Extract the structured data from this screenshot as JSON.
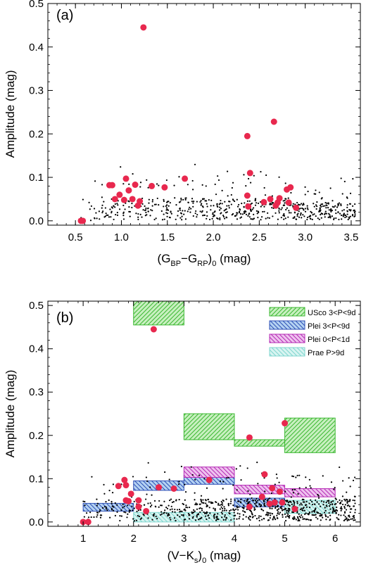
{
  "chart_data": [
    {
      "id": "a",
      "type": "scatter",
      "panel_label": "(a)",
      "xlabel": {
        "pre": "(G",
        "sub1": "BP",
        "mid": "−G",
        "sub2": "RP",
        "post": ")",
        "sub3": "0",
        "tail": " (mag)"
      },
      "ylabel": "Amplitude (mag)",
      "xlim": [
        0.2,
        3.6
      ],
      "ylim": [
        -0.01,
        0.5
      ],
      "xticks": [
        0.5,
        1.0,
        1.5,
        2.0,
        2.5,
        3.0,
        3.5
      ],
      "xtick_labels": [
        "0.5",
        "1.0",
        "1.5",
        "2.0",
        "2.5",
        "3.0",
        "3.5"
      ],
      "yticks": [
        0.0,
        0.1,
        0.2,
        0.3,
        0.4,
        0.5
      ],
      "ytick_labels": [
        "0.0",
        "0.1",
        "0.2",
        "0.3",
        "0.4",
        "0.5"
      ],
      "grid": false,
      "highlight_color": "#e8284e",
      "highlight_points": [
        {
          "x": 0.56,
          "y": 0.0
        },
        {
          "x": 0.58,
          "y": 0.0
        },
        {
          "x": 0.87,
          "y": 0.082
        },
        {
          "x": 0.9,
          "y": 0.082
        },
        {
          "x": 0.93,
          "y": 0.05
        },
        {
          "x": 0.98,
          "y": 0.06
        },
        {
          "x": 1.03,
          "y": 0.048
        },
        {
          "x": 1.05,
          "y": 0.097
        },
        {
          "x": 1.08,
          "y": 0.07
        },
        {
          "x": 1.12,
          "y": 0.05
        },
        {
          "x": 1.15,
          "y": 0.083
        },
        {
          "x": 1.18,
          "y": 0.035
        },
        {
          "x": 1.2,
          "y": 0.045
        },
        {
          "x": 1.24,
          "y": 0.445
        },
        {
          "x": 1.33,
          "y": 0.08
        },
        {
          "x": 1.47,
          "y": 0.077
        },
        {
          "x": 1.69,
          "y": 0.097
        },
        {
          "x": 2.37,
          "y": 0.195
        },
        {
          "x": 2.37,
          "y": 0.058
        },
        {
          "x": 2.38,
          "y": 0.033
        },
        {
          "x": 2.4,
          "y": 0.11
        },
        {
          "x": 2.55,
          "y": 0.043
        },
        {
          "x": 2.62,
          "y": 0.05
        },
        {
          "x": 2.66,
          "y": 0.228
        },
        {
          "x": 2.68,
          "y": 0.035
        },
        {
          "x": 2.7,
          "y": 0.042
        },
        {
          "x": 2.72,
          "y": 0.052
        },
        {
          "x": 2.8,
          "y": 0.072
        },
        {
          "x": 2.82,
          "y": 0.042
        },
        {
          "x": 2.84,
          "y": 0.077
        },
        {
          "x": 2.9,
          "y": 0.03
        }
      ],
      "background_seed": 7,
      "background_count": 620
    },
    {
      "id": "b",
      "type": "scatter",
      "panel_label": "(b)",
      "xlabel": {
        "pre": "(V−K",
        "sub1": "s",
        "mid": ")",
        "sub2": "0",
        "post": " (mag)"
      },
      "ylabel": "Amplitude (mag)",
      "xlim": [
        0.3,
        6.5
      ],
      "ylim": [
        -0.01,
        0.51
      ],
      "xticks": [
        1,
        2,
        3,
        4,
        5,
        6
      ],
      "xtick_labels": [
        "1",
        "2",
        "3",
        "4",
        "5",
        "6"
      ],
      "yticks": [
        0.0,
        0.1,
        0.2,
        0.3,
        0.4,
        0.5
      ],
      "ytick_labels": [
        "0.0",
        "0.1",
        "0.2",
        "0.3",
        "0.4",
        "0.5"
      ],
      "grid": false,
      "legend_placement": "top-right",
      "legend": [
        {
          "label": "USco 3<P<9d",
          "color": "#3cb832",
          "fill": "#c8f0c0",
          "hatch": "diag-up"
        },
        {
          "label": "Plei 3<P<9d",
          "color": "#2d4fb5",
          "fill": "#b4d2f2",
          "hatch": "diag-down"
        },
        {
          "label": "Plei 0<P<1d",
          "color": "#b52bb5",
          "fill": "#efc2ef",
          "hatch": "diag-down"
        },
        {
          "label": "Prae P>9d",
          "color": "#7fd6cf",
          "fill": "#d8f4f1",
          "hatch": "diag-down"
        }
      ],
      "boxes": [
        {
          "group": 0,
          "x0": 2.0,
          "x1": 3.0,
          "y0": 0.455,
          "y1": 0.51
        },
        {
          "group": 0,
          "x0": 3.0,
          "x1": 4.0,
          "y0": 0.19,
          "y1": 0.25
        },
        {
          "group": 0,
          "x0": 4.0,
          "x1": 5.0,
          "y0": 0.175,
          "y1": 0.19
        },
        {
          "group": 0,
          "x0": 5.0,
          "x1": 6.0,
          "y0": 0.16,
          "y1": 0.24
        },
        {
          "group": 1,
          "x0": 1.0,
          "x1": 2.0,
          "y0": 0.025,
          "y1": 0.043
        },
        {
          "group": 1,
          "x0": 2.0,
          "x1": 3.0,
          "y0": 0.073,
          "y1": 0.095
        },
        {
          "group": 1,
          "x0": 3.0,
          "x1": 4.0,
          "y0": 0.087,
          "y1": 0.108
        },
        {
          "group": 1,
          "x0": 4.0,
          "x1": 5.0,
          "y0": 0.035,
          "y1": 0.055
        },
        {
          "group": 2,
          "x0": 3.0,
          "x1": 4.0,
          "y0": 0.103,
          "y1": 0.127
        },
        {
          "group": 2,
          "x0": 4.0,
          "x1": 5.0,
          "y0": 0.065,
          "y1": 0.085
        },
        {
          "group": 2,
          "x0": 5.0,
          "x1": 6.0,
          "y0": 0.058,
          "y1": 0.077
        },
        {
          "group": 3,
          "x0": 2.0,
          "x1": 3.0,
          "y0": 0.0,
          "y1": 0.022
        },
        {
          "group": 3,
          "x0": 3.0,
          "x1": 4.0,
          "y0": 0.0,
          "y1": 0.022
        },
        {
          "group": 3,
          "x0": 5.0,
          "x1": 6.0,
          "y0": 0.02,
          "y1": 0.05
        }
      ],
      "highlight_color": "#e8284e",
      "highlight_points": [
        {
          "x": 1.0,
          "y": 0.0
        },
        {
          "x": 1.1,
          "y": 0.0
        },
        {
          "x": 1.7,
          "y": 0.083
        },
        {
          "x": 1.82,
          "y": 0.097
        },
        {
          "x": 1.85,
          "y": 0.085
        },
        {
          "x": 1.85,
          "y": 0.05
        },
        {
          "x": 1.9,
          "y": 0.048
        },
        {
          "x": 1.95,
          "y": 0.065
        },
        {
          "x": 2.1,
          "y": 0.035
        },
        {
          "x": 2.1,
          "y": 0.05
        },
        {
          "x": 2.25,
          "y": 0.025
        },
        {
          "x": 2.4,
          "y": 0.445
        },
        {
          "x": 2.5,
          "y": 0.08
        },
        {
          "x": 2.8,
          "y": 0.077
        },
        {
          "x": 3.5,
          "y": 0.097
        },
        {
          "x": 4.3,
          "y": 0.195
        },
        {
          "x": 4.3,
          "y": 0.035
        },
        {
          "x": 4.55,
          "y": 0.058
        },
        {
          "x": 4.6,
          "y": 0.11
        },
        {
          "x": 4.7,
          "y": 0.042
        },
        {
          "x": 4.75,
          "y": 0.078
        },
        {
          "x": 4.8,
          "y": 0.045
        },
        {
          "x": 4.9,
          "y": 0.07
        },
        {
          "x": 4.95,
          "y": 0.045
        },
        {
          "x": 5.0,
          "y": 0.228
        },
        {
          "x": 5.2,
          "y": 0.03
        }
      ],
      "background_seed": 11,
      "background_count": 800
    }
  ]
}
